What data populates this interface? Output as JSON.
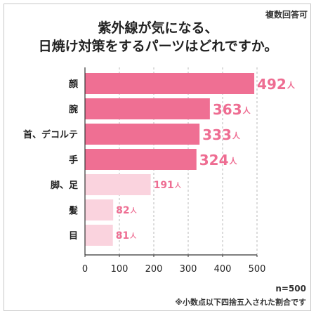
{
  "note_top_right": "複数回答可",
  "title_line1": "紫外線が気になる、",
  "title_line2": "日焼け対策をするパーツはどれですか。",
  "footnote_n": "n=500",
  "footnote_rounding": "※小数点以下四捨五入された割合です",
  "colors": {
    "bar_strong": "#ef6f93",
    "bar_light": "#fad3de",
    "label_pink": "#ee6d92",
    "grid": "#b9b9b9",
    "axis": "#333333"
  },
  "chart_data": {
    "type": "bar",
    "orientation": "horizontal",
    "categories": [
      "顔",
      "腕",
      "首、デコルテ",
      "手",
      "脚、足",
      "髪",
      "目"
    ],
    "values": [
      492,
      363,
      333,
      324,
      191,
      82,
      81
    ],
    "value_unit": "人",
    "xlim": [
      0,
      500
    ],
    "xticks": [
      "0",
      "100",
      "200",
      "300",
      "400",
      "500"
    ],
    "grid": true,
    "highlight_top": 4
  }
}
